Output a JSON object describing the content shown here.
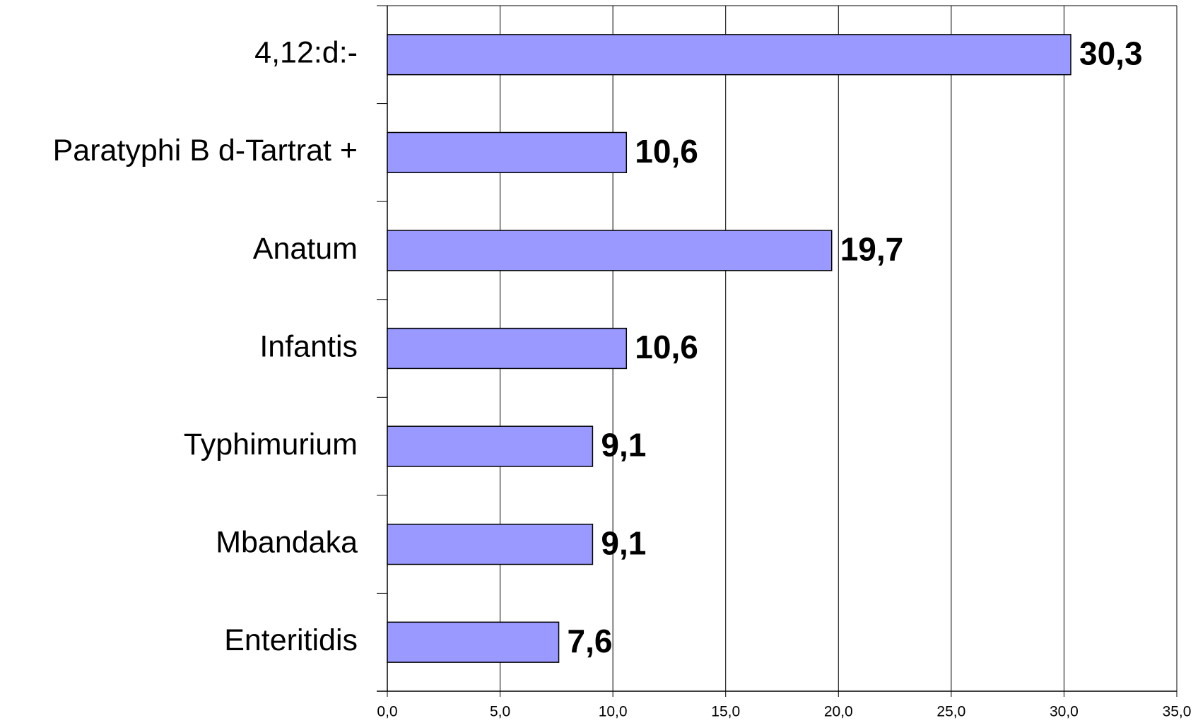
{
  "chart_data": {
    "type": "bar",
    "orientation": "horizontal",
    "categories": [
      "4,12:d:-",
      "Paratyphi B d-Tartrat +",
      "Anatum",
      "Infantis",
      "Typhimurium",
      "Mbandaka",
      "Enteritidis"
    ],
    "values": [
      30.3,
      10.6,
      19.7,
      10.6,
      9.1,
      9.1,
      7.6
    ],
    "value_labels": [
      "30,3",
      "10,6",
      "19,7",
      "10,6",
      "9,1",
      "9,1",
      "7,6"
    ],
    "color": "#9999ff",
    "xlim": [
      0,
      35
    ],
    "xticks": [
      {
        "value": 0,
        "label": "0,0"
      },
      {
        "value": 5,
        "label": "5,0"
      },
      {
        "value": 10,
        "label": "10,0"
      },
      {
        "value": 15,
        "label": "15,0"
      },
      {
        "value": 20,
        "label": "20,0"
      },
      {
        "value": 25,
        "label": "25,0"
      },
      {
        "value": 30,
        "label": "30,0"
      },
      {
        "value": 35,
        "label": "35,0"
      }
    ],
    "grid": true
  }
}
